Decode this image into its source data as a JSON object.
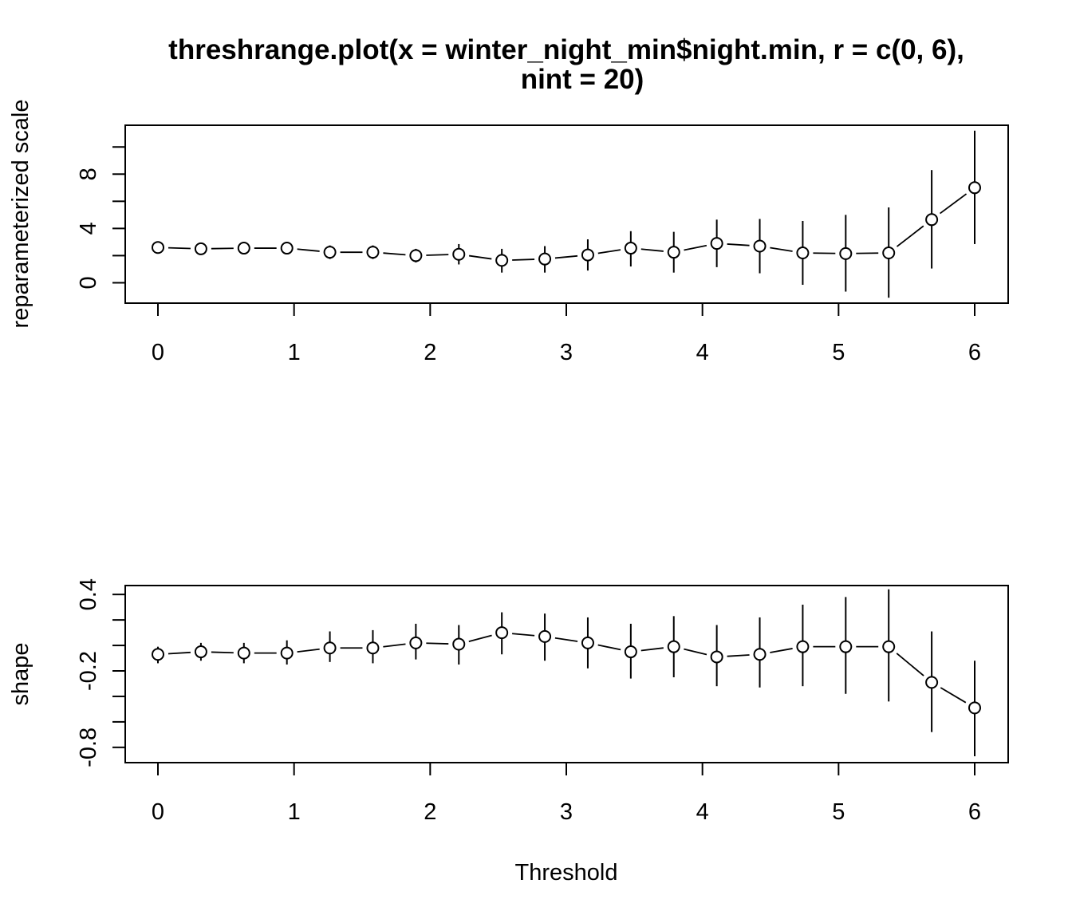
{
  "chart_data": {
    "type": "scatter",
    "title_line1": "threshrange.plot(x = winter_night_min$night.min, r = c(0, 6),",
    "title_line2": "nint = 20)",
    "xlabel": "Threshold",
    "xlim": [
      0,
      6
    ],
    "x": [
      0,
      0.3158,
      0.6316,
      0.9474,
      1.2632,
      1.5789,
      1.8947,
      2.2105,
      2.5263,
      2.8421,
      3.1579,
      3.4737,
      3.7895,
      4.1053,
      4.4211,
      4.7368,
      5.0526,
      5.3684,
      5.6842,
      6.0
    ],
    "x_ticks": [
      "0",
      "1",
      "2",
      "3",
      "4",
      "5",
      "6"
    ],
    "panels": [
      {
        "name": "scale",
        "ylabel": "reparameterized scale",
        "ylim": [
          -1.5,
          11.6
        ],
        "y_ticks": [
          0,
          2,
          4,
          6,
          8,
          10
        ],
        "y_tick_labels": [
          "0",
          "",
          "4",
          "",
          "8",
          ""
        ],
        "values": [
          2.6,
          2.5,
          2.55,
          2.55,
          2.25,
          2.25,
          2.0,
          2.1,
          1.65,
          1.75,
          2.05,
          2.55,
          2.25,
          2.9,
          2.7,
          2.2,
          2.15,
          2.2,
          4.65,
          7.0
        ],
        "lower": [
          2.15,
          2.05,
          2.1,
          2.15,
          1.75,
          1.75,
          1.5,
          1.35,
          0.75,
          0.75,
          0.9,
          1.2,
          0.75,
          1.15,
          0.7,
          -0.15,
          -0.65,
          -1.1,
          1.05,
          2.85
        ],
        "upper": [
          3.05,
          2.95,
          3.0,
          2.95,
          2.75,
          2.75,
          2.5,
          2.85,
          2.5,
          2.7,
          3.2,
          3.8,
          3.75,
          4.65,
          4.7,
          4.55,
          5.0,
          5.55,
          8.3,
          11.2
        ]
      },
      {
        "name": "shape",
        "ylabel": "shape",
        "ylim": [
          -0.92,
          0.47
        ],
        "y_ticks": [
          0.4,
          0.2,
          0.0,
          -0.2,
          -0.4,
          -0.6,
          -0.8
        ],
        "y_tick_labels": [
          "0.4",
          "",
          "",
          "-0.2",
          "",
          "",
          "-0.8"
        ],
        "values": [
          -0.07,
          -0.05,
          -0.06,
          -0.06,
          -0.02,
          -0.02,
          0.02,
          0.01,
          0.1,
          0.07,
          0.02,
          -0.05,
          -0.01,
          -0.09,
          -0.07,
          -0.01,
          -0.01,
          -0.01,
          -0.29,
          -0.49
        ],
        "lower": [
          -0.14,
          -0.12,
          -0.14,
          -0.15,
          -0.13,
          -0.14,
          -0.11,
          -0.15,
          -0.07,
          -0.12,
          -0.18,
          -0.26,
          -0.25,
          -0.32,
          -0.33,
          -0.32,
          -0.38,
          -0.44,
          -0.68,
          -0.87
        ],
        "upper": [
          -0.01,
          0.02,
          0.02,
          0.04,
          0.11,
          0.12,
          0.17,
          0.16,
          0.26,
          0.25,
          0.22,
          0.17,
          0.23,
          0.16,
          0.22,
          0.32,
          0.38,
          0.44,
          0.11,
          -0.12
        ]
      }
    ]
  }
}
